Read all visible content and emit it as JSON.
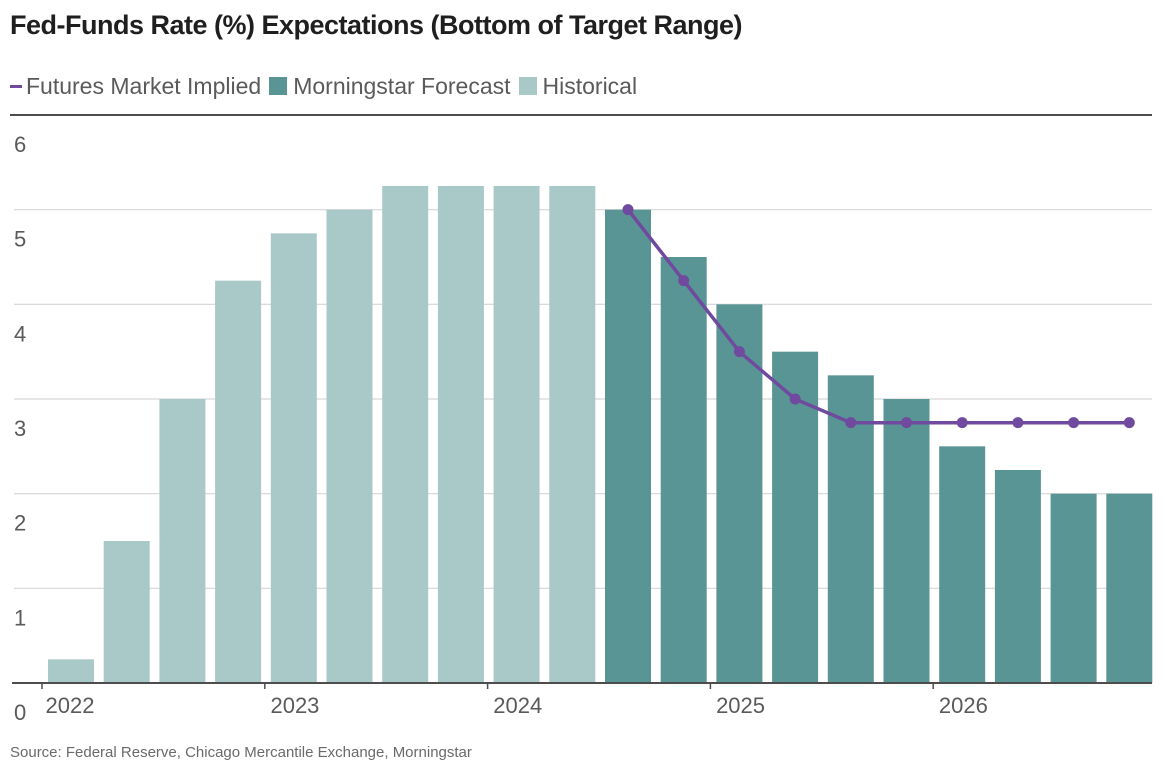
{
  "title": "Fed-Funds Rate (%) Expectations (Bottom of Target Range)",
  "source": "Source: Federal Reserve, Chicago Mercantile Exchange, Morningstar",
  "colors": {
    "historical": "#a9c8c8",
    "forecast": "#5a9595",
    "futures": "#6f4a9e",
    "grid": "#d6d6d6",
    "axis": "#4d4d4d",
    "text": "#5a5a5a"
  },
  "legend": [
    {
      "label": "Futures Market Implied",
      "kind": "line",
      "color_key": "futures"
    },
    {
      "label": "Morningstar Forecast",
      "kind": "box",
      "color_key": "forecast"
    },
    {
      "label": "Historical",
      "kind": "box",
      "color_key": "historical"
    }
  ],
  "chart_data": {
    "type": "bar",
    "title": "Fed-Funds Rate (%) Expectations (Bottom of Target Range)",
    "ylim": [
      0,
      6
    ],
    "yticks": [
      "0",
      "1",
      "2",
      "3",
      "4",
      "5",
      "6"
    ],
    "grid": true,
    "legend_position": "top-left",
    "x_tick_labels": [
      {
        "label": "2022",
        "index": 0
      },
      {
        "label": "2023",
        "index": 4
      },
      {
        "label": "2024",
        "index": 8
      },
      {
        "label": "2025",
        "index": 12
      },
      {
        "label": "2026",
        "index": 16
      }
    ],
    "bars": [
      {
        "value": 0.25,
        "series": "Historical"
      },
      {
        "value": 1.5,
        "series": "Historical"
      },
      {
        "value": 3.0,
        "series": "Historical"
      },
      {
        "value": 4.25,
        "series": "Historical"
      },
      {
        "value": 4.75,
        "series": "Historical"
      },
      {
        "value": 5.0,
        "series": "Historical"
      },
      {
        "value": 5.25,
        "series": "Historical"
      },
      {
        "value": 5.25,
        "series": "Historical"
      },
      {
        "value": 5.25,
        "series": "Historical"
      },
      {
        "value": 5.25,
        "series": "Historical"
      },
      {
        "value": 5.0,
        "series": "Morningstar Forecast"
      },
      {
        "value": 4.5,
        "series": "Morningstar Forecast"
      },
      {
        "value": 4.0,
        "series": "Morningstar Forecast"
      },
      {
        "value": 3.5,
        "series": "Morningstar Forecast"
      },
      {
        "value": 3.25,
        "series": "Morningstar Forecast"
      },
      {
        "value": 3.0,
        "series": "Morningstar Forecast"
      },
      {
        "value": 2.5,
        "series": "Morningstar Forecast"
      },
      {
        "value": 2.25,
        "series": "Morningstar Forecast"
      },
      {
        "value": 2.0,
        "series": "Morningstar Forecast"
      },
      {
        "value": 2.0,
        "series": "Morningstar Forecast"
      }
    ],
    "series": [
      {
        "name": "Futures Market Implied",
        "type": "line",
        "start_index": 10,
        "values": [
          5.0,
          4.25,
          3.5,
          3.0,
          2.75,
          2.75,
          2.75,
          2.75,
          2.75,
          2.75
        ]
      }
    ]
  }
}
